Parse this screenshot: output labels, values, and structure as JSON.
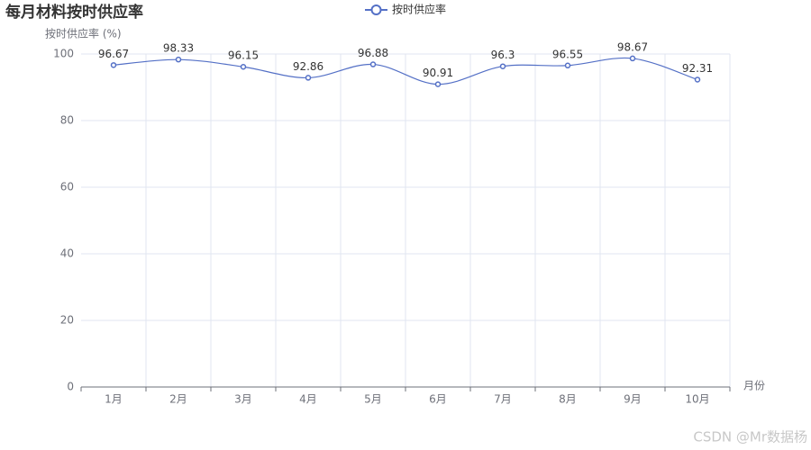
{
  "chart_data": {
    "type": "line",
    "title": "每月材料按时供应率",
    "y_label": "按时供应率 (%)",
    "x_label": "月份",
    "categories": [
      "1月",
      "2月",
      "3月",
      "4月",
      "5月",
      "6月",
      "7月",
      "8月",
      "9月",
      "10月"
    ],
    "series": [
      {
        "name": "按时供应率",
        "color": "#5470c6",
        "values": [
          96.67,
          98.33,
          96.15,
          92.86,
          96.88,
          90.91,
          96.3,
          96.55,
          98.67,
          92.31
        ]
      }
    ],
    "ylim": [
      0,
      100
    ],
    "yticks": [
      0,
      20,
      40,
      60,
      80,
      100
    ],
    "grid": true,
    "smooth": true,
    "watermark": "CSDN @Mr数据杨"
  }
}
